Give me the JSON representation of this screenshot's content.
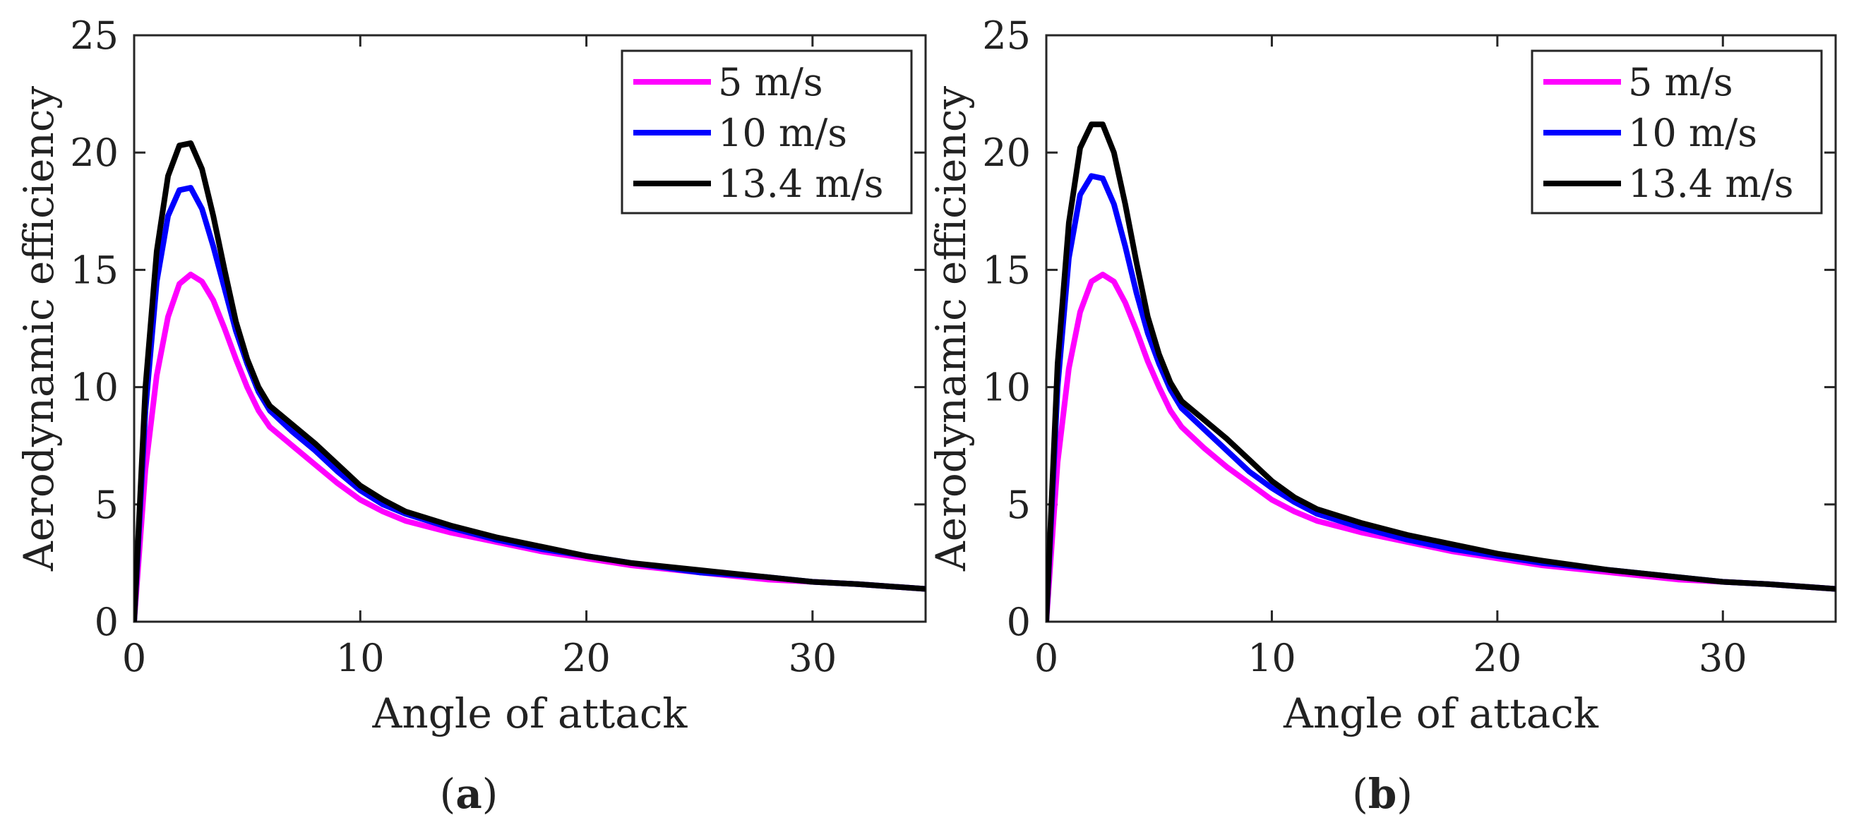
{
  "chart_data": [
    {
      "type": "line",
      "panel_label": "a",
      "xlabel": "Angle of attack",
      "ylabel": "Aerodynamic efficiency",
      "xlim": [
        0,
        35
      ],
      "ylim": [
        0,
        25
      ],
      "xticks": [
        0,
        10,
        20,
        30
      ],
      "yticks": [
        0,
        5,
        10,
        15,
        20,
        25
      ],
      "grid": false,
      "legend_position": "top-right",
      "series": [
        {
          "name": "5 m/s",
          "color": "#ff00ff",
          "x": [
            0,
            0.5,
            1,
            1.5,
            2,
            2.5,
            3,
            3.5,
            4,
            4.5,
            5,
            5.5,
            6,
            7,
            8,
            9,
            10,
            11,
            12,
            14,
            16,
            18,
            20,
            22,
            25,
            28,
            30,
            32,
            35
          ],
          "y": [
            0,
            6.5,
            10.5,
            13.0,
            14.4,
            14.8,
            14.5,
            13.7,
            12.5,
            11.2,
            10.0,
            9.0,
            8.3,
            7.5,
            6.7,
            5.9,
            5.2,
            4.7,
            4.3,
            3.8,
            3.4,
            3.0,
            2.7,
            2.4,
            2.1,
            1.8,
            1.7,
            1.6,
            1.4
          ]
        },
        {
          "name": "10 m/s",
          "color": "#0000ff",
          "x": [
            0,
            0.5,
            1,
            1.5,
            2,
            2.5,
            3,
            3.5,
            4,
            4.5,
            5,
            5.5,
            6,
            7,
            8,
            9,
            10,
            11,
            12,
            14,
            16,
            18,
            20,
            22,
            25,
            28,
            30,
            32,
            35
          ],
          "y": [
            0,
            9.0,
            14.5,
            17.3,
            18.4,
            18.5,
            17.6,
            16.0,
            14.2,
            12.4,
            11.0,
            9.8,
            9.0,
            8.1,
            7.3,
            6.4,
            5.6,
            5.0,
            4.6,
            4.0,
            3.5,
            3.1,
            2.8,
            2.5,
            2.1,
            1.9,
            1.7,
            1.6,
            1.4
          ]
        },
        {
          "name": "13.4 m/s",
          "color": "#000000",
          "x": [
            0,
            0.5,
            1,
            1.5,
            2,
            2.5,
            3,
            3.5,
            4,
            4.5,
            5,
            5.5,
            6,
            7,
            8,
            9,
            10,
            11,
            12,
            14,
            16,
            18,
            20,
            22,
            25,
            28,
            30,
            32,
            35
          ],
          "y": [
            0,
            10.0,
            15.8,
            19.0,
            20.3,
            20.4,
            19.3,
            17.3,
            15.0,
            12.8,
            11.2,
            10.0,
            9.2,
            8.4,
            7.6,
            6.7,
            5.8,
            5.2,
            4.7,
            4.1,
            3.6,
            3.2,
            2.8,
            2.5,
            2.2,
            1.9,
            1.7,
            1.6,
            1.4
          ]
        }
      ]
    },
    {
      "type": "line",
      "panel_label": "b",
      "xlabel": "Angle of attack",
      "ylabel": "Aerodynamic efficiency",
      "xlim": [
        0,
        35
      ],
      "ylim": [
        0,
        25
      ],
      "xticks": [
        0,
        10,
        20,
        30
      ],
      "yticks": [
        0,
        5,
        10,
        15,
        20,
        25
      ],
      "grid": false,
      "legend_position": "top-right",
      "series": [
        {
          "name": "5 m/s",
          "color": "#ff00ff",
          "x": [
            0,
            0.5,
            1,
            1.5,
            2,
            2.5,
            3,
            3.5,
            4,
            4.5,
            5,
            5.5,
            6,
            7,
            8,
            9,
            10,
            11,
            12,
            14,
            16,
            18,
            20,
            22,
            25,
            28,
            30,
            32,
            35
          ],
          "y": [
            0,
            6.8,
            10.8,
            13.2,
            14.5,
            14.8,
            14.5,
            13.6,
            12.4,
            11.1,
            10.0,
            9.0,
            8.3,
            7.4,
            6.6,
            5.9,
            5.2,
            4.7,
            4.3,
            3.8,
            3.4,
            3.0,
            2.7,
            2.4,
            2.1,
            1.8,
            1.7,
            1.6,
            1.4
          ]
        },
        {
          "name": "10 m/s",
          "color": "#0000ff",
          "x": [
            0,
            0.5,
            1,
            1.5,
            2,
            2.5,
            3,
            3.5,
            4,
            4.5,
            5,
            5.5,
            6,
            7,
            8,
            9,
            10,
            11,
            12,
            14,
            16,
            18,
            20,
            22,
            25,
            28,
            30,
            32,
            35
          ],
          "y": [
            0,
            10.0,
            15.5,
            18.2,
            19.0,
            18.9,
            17.8,
            16.0,
            14.0,
            12.3,
            11.0,
            9.9,
            9.1,
            8.2,
            7.3,
            6.4,
            5.7,
            5.1,
            4.6,
            4.0,
            3.5,
            3.1,
            2.8,
            2.5,
            2.2,
            1.9,
            1.7,
            1.6,
            1.4
          ]
        },
        {
          "name": "13.4 m/s",
          "color": "#000000",
          "x": [
            0,
            0.5,
            1,
            1.5,
            2,
            2.5,
            3,
            3.5,
            4,
            4.5,
            5,
            5.5,
            6,
            7,
            8,
            9,
            10,
            11,
            12,
            14,
            16,
            18,
            20,
            22,
            25,
            28,
            30,
            32,
            35
          ],
          "y": [
            0,
            11.0,
            17.0,
            20.2,
            21.2,
            21.2,
            20.0,
            17.8,
            15.3,
            13.0,
            11.4,
            10.2,
            9.4,
            8.6,
            7.8,
            6.9,
            6.0,
            5.3,
            4.8,
            4.2,
            3.7,
            3.3,
            2.9,
            2.6,
            2.2,
            1.9,
            1.7,
            1.6,
            1.4
          ]
        }
      ]
    }
  ]
}
